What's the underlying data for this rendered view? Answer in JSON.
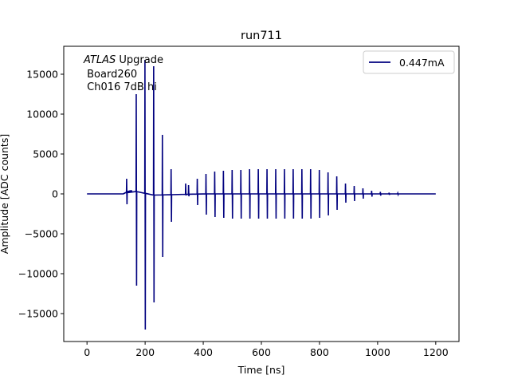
{
  "chart_data": {
    "type": "line",
    "title": "run711",
    "xlabel": "Time [ns]",
    "ylabel": "Amplitude [ADC counts]",
    "xlim": [
      -80,
      1280
    ],
    "ylim": [
      -18500,
      18500
    ],
    "x_ticks": [
      0,
      200,
      400,
      600,
      800,
      1000,
      1200
    ],
    "y_ticks": [
      -15000,
      -10000,
      -5000,
      0,
      5000,
      10000,
      15000
    ],
    "grid": false,
    "legend_placement": "top-right",
    "annotation": {
      "line1_italic": "ATLAS",
      "line1_rest": " Upgrade",
      "line2": " Board260",
      "line3": " Ch016 7dB hi"
    },
    "series": [
      {
        "name": "0.447mA",
        "color": "#00007f",
        "baseline": 0,
        "bump": {
          "x_start": 125,
          "x_peak": 155,
          "x_end": 230,
          "peak": 400,
          "trough": -150
        },
        "spikes": [
          {
            "x": 137,
            "pos": 1900,
            "neg": -1300
          },
          {
            "x": 170,
            "pos": 12500,
            "neg": -11500
          },
          {
            "x": 200,
            "pos": 16800,
            "neg": -17000
          },
          {
            "x": 230,
            "pos": 16000,
            "neg": -13600
          },
          {
            "x": 260,
            "pos": 7400,
            "neg": -7900
          },
          {
            "x": 290,
            "pos": 3100,
            "neg": -3500
          },
          {
            "x": 340,
            "pos": 1300,
            "neg": -200
          },
          {
            "x": 350,
            "pos": 1100,
            "neg": -300
          },
          {
            "x": 380,
            "pos": 1900,
            "neg": -1400
          },
          {
            "x": 410,
            "pos": 2500,
            "neg": -2600
          },
          {
            "x": 440,
            "pos": 2800,
            "neg": -2900
          },
          {
            "x": 470,
            "pos": 2900,
            "neg": -3000
          },
          {
            "x": 500,
            "pos": 3000,
            "neg": -3100
          },
          {
            "x": 530,
            "pos": 3000,
            "neg": -3100
          },
          {
            "x": 560,
            "pos": 3100,
            "neg": -3100
          },
          {
            "x": 590,
            "pos": 3100,
            "neg": -3100
          },
          {
            "x": 620,
            "pos": 3100,
            "neg": -3100
          },
          {
            "x": 650,
            "pos": 3100,
            "neg": -3100
          },
          {
            "x": 680,
            "pos": 3100,
            "neg": -3100
          },
          {
            "x": 710,
            "pos": 3100,
            "neg": -3100
          },
          {
            "x": 740,
            "pos": 3100,
            "neg": -3100
          },
          {
            "x": 770,
            "pos": 3100,
            "neg": -3100
          },
          {
            "x": 800,
            "pos": 3000,
            "neg": -3000
          },
          {
            "x": 830,
            "pos": 2700,
            "neg": -2700
          },
          {
            "x": 860,
            "pos": 2200,
            "neg": -2000
          },
          {
            "x": 890,
            "pos": 1300,
            "neg": -1100
          },
          {
            "x": 920,
            "pos": 1000,
            "neg": -900
          },
          {
            "x": 950,
            "pos": 700,
            "neg": -600
          },
          {
            "x": 980,
            "pos": 400,
            "neg": -350
          },
          {
            "x": 1010,
            "pos": 250,
            "neg": -220
          },
          {
            "x": 1040,
            "pos": 150,
            "neg": -130
          },
          {
            "x": 1070,
            "pos": 80,
            "neg": -70
          }
        ],
        "x_end": 1200
      }
    ]
  }
}
